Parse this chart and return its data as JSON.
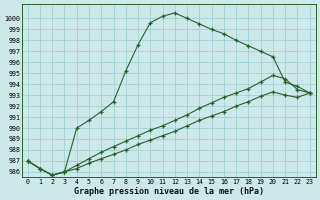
{
  "title": "Graphe pression niveau de la mer (hPa)",
  "background_color": "#cce8e8",
  "grid_color": "#99cccc",
  "line_color": "#2a6030",
  "ylim": [
    985.5,
    1001.3
  ],
  "y_ticks": [
    986,
    987,
    988,
    989,
    990,
    991,
    992,
    993,
    994,
    995,
    996,
    997,
    998,
    999,
    1000
  ],
  "x_ticks": [
    0,
    1,
    2,
    3,
    4,
    5,
    6,
    7,
    8,
    9,
    10,
    11,
    12,
    13,
    14,
    15,
    16,
    17,
    18,
    19,
    20,
    21,
    22,
    23
  ],
  "series1": [
    987.0,
    986.3,
    985.7,
    986.0,
    990.0,
    990.7,
    991.5,
    992.4,
    995.2,
    997.6,
    999.6,
    1000.2,
    1000.5,
    1000.0,
    999.5,
    999.0,
    998.6,
    998.0,
    997.5,
    997.0,
    996.5,
    994.2,
    993.8,
    993.2
  ],
  "series2": [
    987.0,
    986.3,
    985.7,
    986.0,
    986.6,
    987.2,
    987.8,
    988.3,
    988.8,
    989.3,
    989.8,
    990.2,
    990.7,
    991.2,
    991.8,
    992.3,
    992.8,
    993.2,
    993.6,
    994.2,
    994.8,
    994.5,
    993.5,
    993.2
  ],
  "series3": [
    987.0,
    986.3,
    985.7,
    986.0,
    986.3,
    986.8,
    987.2,
    987.6,
    988.0,
    988.5,
    988.9,
    989.3,
    989.7,
    990.2,
    990.7,
    991.1,
    991.5,
    992.0,
    992.4,
    992.9,
    993.3,
    993.0,
    992.8,
    993.2
  ]
}
